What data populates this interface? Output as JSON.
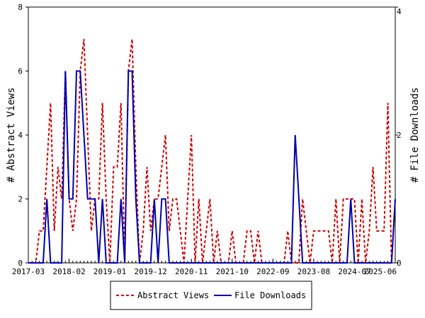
{
  "chart_data": {
    "type": "line",
    "x_tick_labels": [
      "2017-03",
      "2018-02",
      "2019-01",
      "2019-12",
      "2020-11",
      "2021-10",
      "2022-09",
      "2023-08",
      "2024-07",
      "2025-06"
    ],
    "x_range": [
      "2017-03",
      "2025-06"
    ],
    "ylabel_left": "# Abstract Views",
    "ylabel_right": "# File Downloads",
    "ylim_left": [
      0,
      8
    ],
    "ylim_right": [
      0,
      4
    ],
    "yticks_left": [
      "0",
      "2",
      "4",
      "6",
      "8"
    ],
    "yticks_right": [
      "0",
      "2",
      "4"
    ],
    "grid": false,
    "legend_position": "bottom",
    "series": [
      {
        "name": "Abstract Views",
        "axis": "left",
        "color": "#cc0000",
        "style": "dashed",
        "points": [
          [
            "2017-03",
            0
          ],
          [
            "2017-04",
            0
          ],
          [
            "2017-05",
            0
          ],
          [
            "2017-06",
            1
          ],
          [
            "2017-07",
            1
          ],
          [
            "2017-08",
            3
          ],
          [
            "2017-09",
            5
          ],
          [
            "2017-10",
            1
          ],
          [
            "2017-11",
            3
          ],
          [
            "2017-12",
            2
          ],
          [
            "2018-01",
            6
          ],
          [
            "2018-02",
            2
          ],
          [
            "2018-03",
            1
          ],
          [
            "2018-04",
            2
          ],
          [
            "2018-05",
            6
          ],
          [
            "2018-06",
            7
          ],
          [
            "2018-07",
            4
          ],
          [
            "2018-08",
            1
          ],
          [
            "2018-09",
            2
          ],
          [
            "2018-10",
            2
          ],
          [
            "2018-11",
            5
          ],
          [
            "2018-12",
            2
          ],
          [
            "2019-01",
            0
          ],
          [
            "2019-02",
            3
          ],
          [
            "2019-03",
            3
          ],
          [
            "2019-04",
            5
          ],
          [
            "2019-05",
            0
          ],
          [
            "2019-06",
            6
          ],
          [
            "2019-07",
            7
          ],
          [
            "2019-08",
            3
          ],
          [
            "2019-09",
            0
          ],
          [
            "2019-10",
            1
          ],
          [
            "2019-11",
            3
          ],
          [
            "2019-12",
            1
          ],
          [
            "2020-01",
            2
          ],
          [
            "2020-02",
            2
          ],
          [
            "2020-03",
            3
          ],
          [
            "2020-04",
            4
          ],
          [
            "2020-05",
            1
          ],
          [
            "2020-06",
            2
          ],
          [
            "2020-07",
            2
          ],
          [
            "2020-08",
            1
          ],
          [
            "2020-09",
            0
          ],
          [
            "2020-10",
            2
          ],
          [
            "2020-11",
            4
          ],
          [
            "2020-12",
            0
          ],
          [
            "2021-01",
            2
          ],
          [
            "2021-02",
            0
          ],
          [
            "2021-03",
            1
          ],
          [
            "2021-04",
            2
          ],
          [
            "2021-05",
            0
          ],
          [
            "2021-06",
            1
          ],
          [
            "2021-07",
            0
          ],
          [
            "2021-08",
            0
          ],
          [
            "2021-09",
            0
          ],
          [
            "2021-10",
            1
          ],
          [
            "2021-11",
            0
          ],
          [
            "2021-12",
            0
          ],
          [
            "2022-01",
            0
          ],
          [
            "2022-02",
            1
          ],
          [
            "2022-03",
            1
          ],
          [
            "2022-04",
            0
          ],
          [
            "2022-05",
            1
          ],
          [
            "2022-06",
            0
          ],
          [
            "2022-07",
            0
          ],
          [
            "2022-08",
            0
          ],
          [
            "2022-09",
            0
          ],
          [
            "2022-10",
            0
          ],
          [
            "2022-11",
            0
          ],
          [
            "2022-12",
            0
          ],
          [
            "2023-01",
            1
          ],
          [
            "2023-02",
            0
          ],
          [
            "2023-03",
            0
          ],
          [
            "2023-04",
            0
          ],
          [
            "2023-05",
            2
          ],
          [
            "2023-06",
            1
          ],
          [
            "2023-07",
            0
          ],
          [
            "2023-08",
            1
          ],
          [
            "2023-09",
            1
          ],
          [
            "2023-10",
            1
          ],
          [
            "2023-11",
            1
          ],
          [
            "2023-12",
            1
          ],
          [
            "2024-01",
            0
          ],
          [
            "2024-02",
            2
          ],
          [
            "2024-03",
            0
          ],
          [
            "2024-04",
            2
          ],
          [
            "2024-05",
            2
          ],
          [
            "2024-06",
            2
          ],
          [
            "2024-07",
            2
          ],
          [
            "2024-08",
            0
          ],
          [
            "2024-09",
            2
          ],
          [
            "2024-10",
            0
          ],
          [
            "2024-11",
            1
          ],
          [
            "2024-12",
            3
          ],
          [
            "2025-01",
            1
          ],
          [
            "2025-02",
            1
          ],
          [
            "2025-03",
            1
          ],
          [
            "2025-04",
            5
          ],
          [
            "2025-05",
            0
          ],
          [
            "2025-06",
            2
          ]
        ]
      },
      {
        "name": "File Downloads",
        "axis": "right",
        "color": "#0000aa",
        "style": "solid",
        "points": [
          [
            "2017-03",
            0
          ],
          [
            "2017-04",
            0
          ],
          [
            "2017-05",
            0
          ],
          [
            "2017-06",
            0
          ],
          [
            "2017-07",
            0
          ],
          [
            "2017-08",
            1
          ],
          [
            "2017-09",
            0
          ],
          [
            "2017-10",
            0
          ],
          [
            "2017-11",
            0
          ],
          [
            "2017-12",
            0
          ],
          [
            "2018-01",
            3
          ],
          [
            "2018-02",
            1
          ],
          [
            "2018-03",
            1
          ],
          [
            "2018-04",
            3
          ],
          [
            "2018-05",
            3
          ],
          [
            "2018-06",
            2
          ],
          [
            "2018-07",
            1
          ],
          [
            "2018-08",
            1
          ],
          [
            "2018-09",
            1
          ],
          [
            "2018-10",
            0
          ],
          [
            "2018-11",
            1
          ],
          [
            "2018-12",
            0
          ],
          [
            "2019-01",
            0
          ],
          [
            "2019-02",
            0
          ],
          [
            "2019-03",
            0
          ],
          [
            "2019-04",
            1
          ],
          [
            "2019-05",
            0
          ],
          [
            "2019-06",
            3
          ],
          [
            "2019-07",
            3
          ],
          [
            "2019-08",
            1
          ],
          [
            "2019-09",
            0
          ],
          [
            "2019-10",
            0
          ],
          [
            "2019-11",
            0
          ],
          [
            "2019-12",
            0
          ],
          [
            "2020-01",
            1
          ],
          [
            "2020-02",
            0
          ],
          [
            "2020-03",
            1
          ],
          [
            "2020-04",
            1
          ],
          [
            "2020-05",
            0
          ],
          [
            "2020-06",
            0
          ],
          [
            "2020-07",
            0
          ],
          [
            "2020-08",
            0
          ],
          [
            "2020-09",
            0
          ],
          [
            "2020-10",
            0
          ],
          [
            "2020-11",
            0
          ],
          [
            "2020-12",
            0
          ],
          [
            "2021-01",
            0
          ],
          [
            "2021-02",
            0
          ],
          [
            "2021-03",
            0
          ],
          [
            "2021-04",
            0
          ],
          [
            "2021-05",
            0
          ],
          [
            "2021-06",
            0
          ],
          [
            "2021-07",
            0
          ],
          [
            "2021-08",
            0
          ],
          [
            "2021-09",
            0
          ],
          [
            "2021-10",
            0
          ],
          [
            "2021-11",
            0
          ],
          [
            "2021-12",
            0
          ],
          [
            "2022-01",
            0
          ],
          [
            "2022-02",
            0
          ],
          [
            "2022-03",
            0
          ],
          [
            "2022-04",
            0
          ],
          [
            "2022-05",
            0
          ],
          [
            "2022-06",
            0
          ],
          [
            "2022-07",
            0
          ],
          [
            "2022-08",
            0
          ],
          [
            "2022-09",
            0
          ],
          [
            "2022-10",
            0
          ],
          [
            "2022-11",
            0
          ],
          [
            "2022-12",
            0
          ],
          [
            "2023-01",
            0
          ],
          [
            "2023-02",
            0
          ],
          [
            "2023-03",
            2
          ],
          [
            "2023-04",
            1
          ],
          [
            "2023-05",
            0
          ],
          [
            "2023-06",
            0
          ],
          [
            "2023-07",
            0
          ],
          [
            "2023-08",
            0
          ],
          [
            "2023-09",
            0
          ],
          [
            "2023-10",
            0
          ],
          [
            "2023-11",
            0
          ],
          [
            "2023-12",
            0
          ],
          [
            "2024-01",
            0
          ],
          [
            "2024-02",
            0
          ],
          [
            "2024-03",
            0
          ],
          [
            "2024-04",
            0
          ],
          [
            "2024-05",
            0
          ],
          [
            "2024-06",
            1
          ],
          [
            "2024-07",
            0
          ],
          [
            "2024-08",
            0
          ],
          [
            "2024-09",
            0
          ],
          [
            "2024-10",
            0
          ],
          [
            "2024-11",
            0
          ],
          [
            "2024-12",
            0
          ],
          [
            "2025-01",
            0
          ],
          [
            "2025-02",
            0
          ],
          [
            "2025-03",
            0
          ],
          [
            "2025-04",
            0
          ],
          [
            "2025-05",
            0
          ],
          [
            "2025-06",
            1
          ]
        ]
      }
    ]
  }
}
